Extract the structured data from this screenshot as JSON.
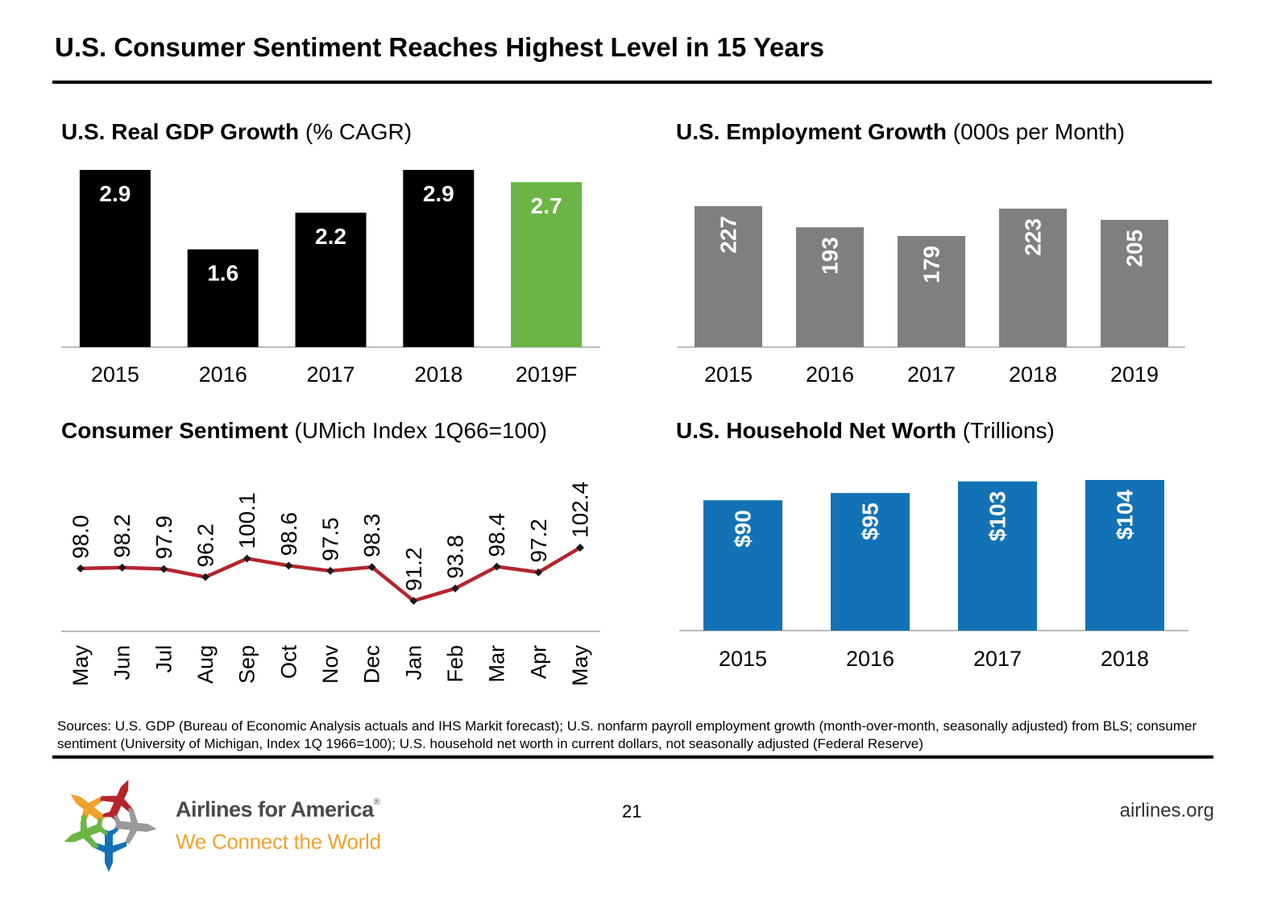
{
  "title": "U.S. Consumer Sentiment Reaches Highest Level in 15 Years",
  "colors": {
    "black": "#000000",
    "green": "#6ab545",
    "gray": "#7f7f7f",
    "blue": "#1372b5",
    "line": "#b5242c",
    "axis": "#a6a6a6",
    "brand_orange": "#f0a22e"
  },
  "chart_data": [
    {
      "id": "gdp",
      "type": "bar",
      "title_bold": "U.S. Real GDP Growth",
      "title_rest": " (% CAGR)",
      "categories": [
        "2015",
        "2016",
        "2017",
        "2018",
        "2019F"
      ],
      "values": [
        2.9,
        1.6,
        2.2,
        2.9,
        2.7
      ],
      "labels": [
        "2.9",
        "1.6",
        "2.2",
        "2.9",
        "2.7"
      ],
      "bar_colors": [
        "#000000",
        "#000000",
        "#000000",
        "#000000",
        "#6ab545"
      ],
      "ylim": [
        0,
        2.9
      ],
      "grid": false
    },
    {
      "id": "employment",
      "type": "bar",
      "title_bold": "U.S. Employment Growth",
      "title_rest": " (000s per Month)",
      "categories": [
        "2015",
        "2016",
        "2017",
        "2018",
        "2019"
      ],
      "values": [
        227,
        193,
        179,
        223,
        205
      ],
      "labels": [
        "227",
        "193",
        "179",
        "223",
        "205"
      ],
      "bar_colors": [
        "#7f7f7f",
        "#7f7f7f",
        "#7f7f7f",
        "#7f7f7f",
        "#7f7f7f"
      ],
      "ylim": [
        0,
        227
      ],
      "grid": false
    },
    {
      "id": "sentiment",
      "type": "line",
      "title_bold": "Consumer Sentiment",
      "title_rest": " (UMich Index 1Q66=100)",
      "categories": [
        "May",
        "Jun",
        "Jul",
        "Aug",
        "Sep",
        "Oct",
        "Nov",
        "Dec",
        "Jan",
        "Feb",
        "Mar",
        "Apr",
        "May"
      ],
      "values": [
        98.0,
        98.2,
        97.9,
        96.2,
        100.1,
        98.6,
        97.5,
        98.3,
        91.2,
        93.8,
        98.4,
        97.2,
        102.4
      ],
      "labels": [
        "98.0",
        "98.2",
        "97.9",
        "96.2",
        "100.1",
        "98.6",
        "97.5",
        "98.3",
        "91.2",
        "93.8",
        "98.4",
        "97.2",
        "102.4"
      ],
      "ylim": [
        72,
        107
      ],
      "grid": false
    },
    {
      "id": "networth",
      "type": "bar",
      "title_bold": "U.S. Household Net Worth",
      "title_rest": " (Trillions)",
      "categories": [
        "2015",
        "2016",
        "2017",
        "2018"
      ],
      "values": [
        90,
        95,
        103,
        104
      ],
      "labels": [
        "$90",
        "$95",
        "$103",
        "$104"
      ],
      "bar_colors": [
        "#1372b5",
        "#1372b5",
        "#1372b5",
        "#1372b5"
      ],
      "ylim": [
        0,
        104
      ],
      "grid": false
    }
  ],
  "sources": "Sources: U.S. GDP (Bureau of Economic Analysis actuals and IHS Markit forecast); U.S. nonfarm payroll employment growth (month-over-month, seasonally adjusted) from BLS; consumer sentiment (University of Michigan, Index 1Q 1966=100); U.S. household net worth in current dollars, not seasonally adjusted (Federal Reserve)",
  "footer": {
    "brand_name": "Airlines for America",
    "brand_reg": "®",
    "tagline": "We Connect the World",
    "page_number": "21",
    "site": "airlines.org"
  }
}
